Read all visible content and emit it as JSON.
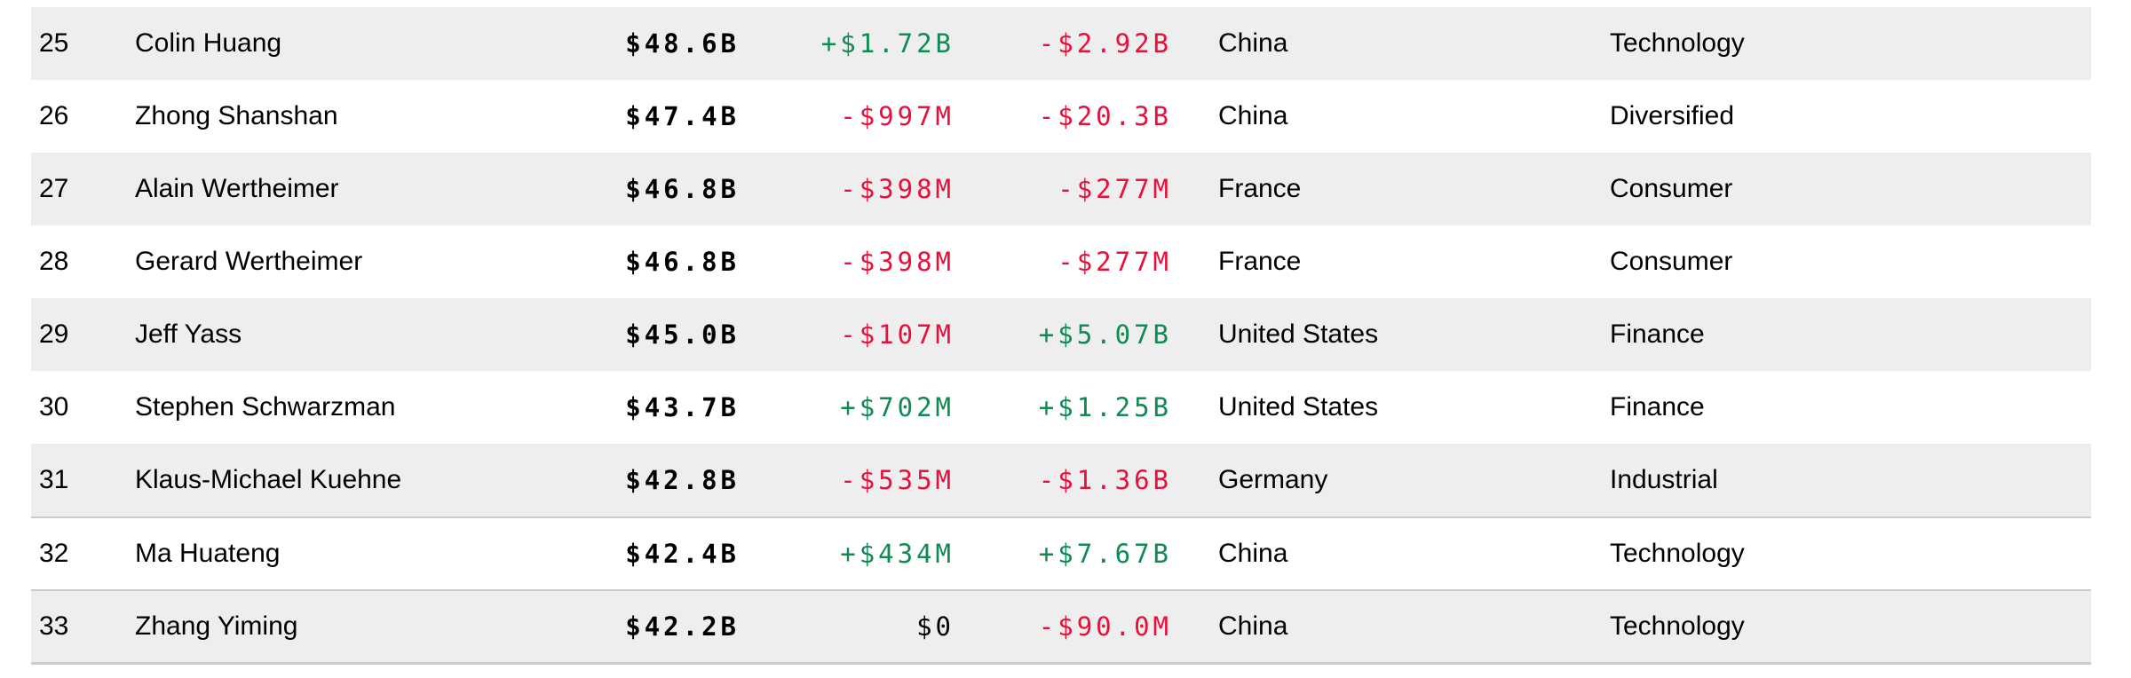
{
  "colors": {
    "positive_change": "#0f8a53",
    "negative_change": "#ea0f3b",
    "row_stripe": "#eeeeee",
    "divider": "#cbcbcb",
    "text": "#000000"
  },
  "table": {
    "rows": [
      {
        "rank": "25",
        "name": "Colin Huang",
        "net_worth": "$48.6B",
        "last_change": "+$1.72B",
        "last_change_tone": "up",
        "ytd_change": "-$2.92B",
        "ytd_change_tone": "down",
        "country": "China",
        "industry": "Technology",
        "striped": true,
        "divider_above": false
      },
      {
        "rank": "26",
        "name": "Zhong Shanshan",
        "net_worth": "$47.4B",
        "last_change": "-$997M",
        "last_change_tone": "down",
        "ytd_change": "-$20.3B",
        "ytd_change_tone": "down",
        "country": "China",
        "industry": "Diversified",
        "striped": false,
        "divider_above": false
      },
      {
        "rank": "27",
        "name": "Alain Wertheimer",
        "net_worth": "$46.8B",
        "last_change": "-$398M",
        "last_change_tone": "down",
        "ytd_change": "-$277M",
        "ytd_change_tone": "down",
        "country": "France",
        "industry": "Consumer",
        "striped": true,
        "divider_above": false
      },
      {
        "rank": "28",
        "name": "Gerard Wertheimer",
        "net_worth": "$46.8B",
        "last_change": "-$398M",
        "last_change_tone": "down",
        "ytd_change": "-$277M",
        "ytd_change_tone": "down",
        "country": "France",
        "industry": "Consumer",
        "striped": false,
        "divider_above": false
      },
      {
        "rank": "29",
        "name": "Jeff Yass",
        "net_worth": "$45.0B",
        "last_change": "-$107M",
        "last_change_tone": "down",
        "ytd_change": "+$5.07B",
        "ytd_change_tone": "up",
        "country": "United States",
        "industry": "Finance",
        "striped": true,
        "divider_above": false
      },
      {
        "rank": "30",
        "name": "Stephen Schwarzman",
        "net_worth": "$43.7B",
        "last_change": "+$702M",
        "last_change_tone": "up",
        "ytd_change": "+$1.25B",
        "ytd_change_tone": "up",
        "country": "United States",
        "industry": "Finance",
        "striped": false,
        "divider_above": false
      },
      {
        "rank": "31",
        "name": "Klaus-Michael Kuehne",
        "net_worth": "$42.8B",
        "last_change": "-$535M",
        "last_change_tone": "down",
        "ytd_change": "-$1.36B",
        "ytd_change_tone": "down",
        "country": "Germany",
        "industry": "Industrial",
        "striped": true,
        "divider_above": false
      },
      {
        "rank": "32",
        "name": "Ma Huateng",
        "net_worth": "$42.4B",
        "last_change": "+$434M",
        "last_change_tone": "up",
        "ytd_change": "+$7.67B",
        "ytd_change_tone": "up",
        "country": "China",
        "industry": "Technology",
        "striped": false,
        "divider_above": true
      },
      {
        "rank": "33",
        "name": "Zhang Yiming",
        "net_worth": "$42.2B",
        "last_change": "$0",
        "last_change_tone": "flat",
        "ytd_change": "-$90.0M",
        "ytd_change_tone": "down",
        "country": "China",
        "industry": "Technology",
        "striped": true,
        "divider_above": true
      }
    ]
  }
}
